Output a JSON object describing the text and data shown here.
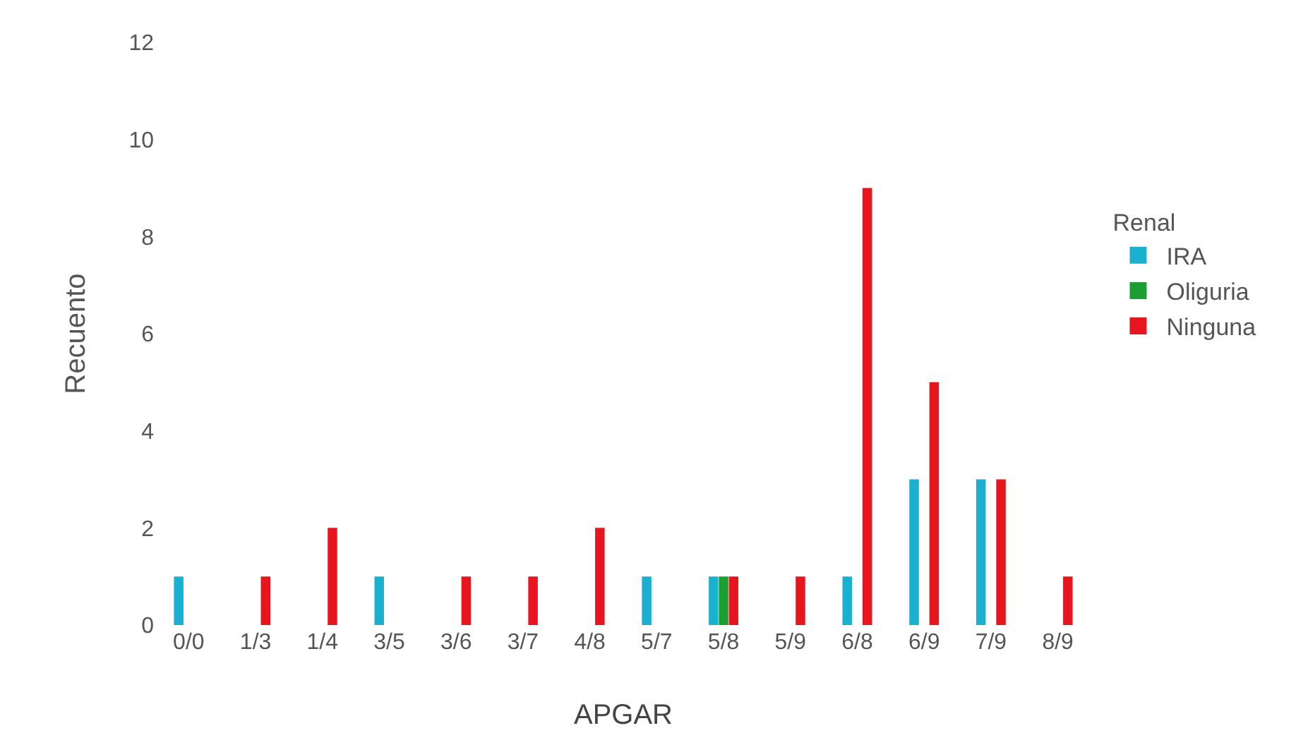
{
  "chart_data": {
    "type": "bar",
    "xlabel": "APGAR",
    "ylabel": "Recuento",
    "legend_title": "Renal",
    "legend": "right",
    "grid": false,
    "categories": [
      "0/0",
      "1/3",
      "1/4",
      "3/5",
      "3/6",
      "3/7",
      "4/8",
      "5/7",
      "5/8",
      "5/9",
      "6/8",
      "6/9",
      "7/9",
      "8/9"
    ],
    "series": [
      {
        "name": "IRA",
        "color": "#1ab0d0",
        "values": [
          1,
          null,
          null,
          1,
          null,
          null,
          null,
          1,
          1,
          null,
          1,
          3,
          3,
          null
        ]
      },
      {
        "name": "Oliguria",
        "color": "#1aa030",
        "values": [
          null,
          null,
          null,
          null,
          null,
          null,
          null,
          null,
          1,
          null,
          null,
          null,
          null,
          null
        ]
      },
      {
        "name": "Ninguna",
        "color": "#e8141e",
        "values": [
          null,
          1,
          2,
          null,
          1,
          1,
          2,
          null,
          1,
          1,
          9,
          5,
          3,
          1
        ]
      }
    ],
    "ylim": [
      0,
      12
    ],
    "yticks": [
      0,
      2,
      4,
      6,
      8,
      10,
      12
    ]
  }
}
